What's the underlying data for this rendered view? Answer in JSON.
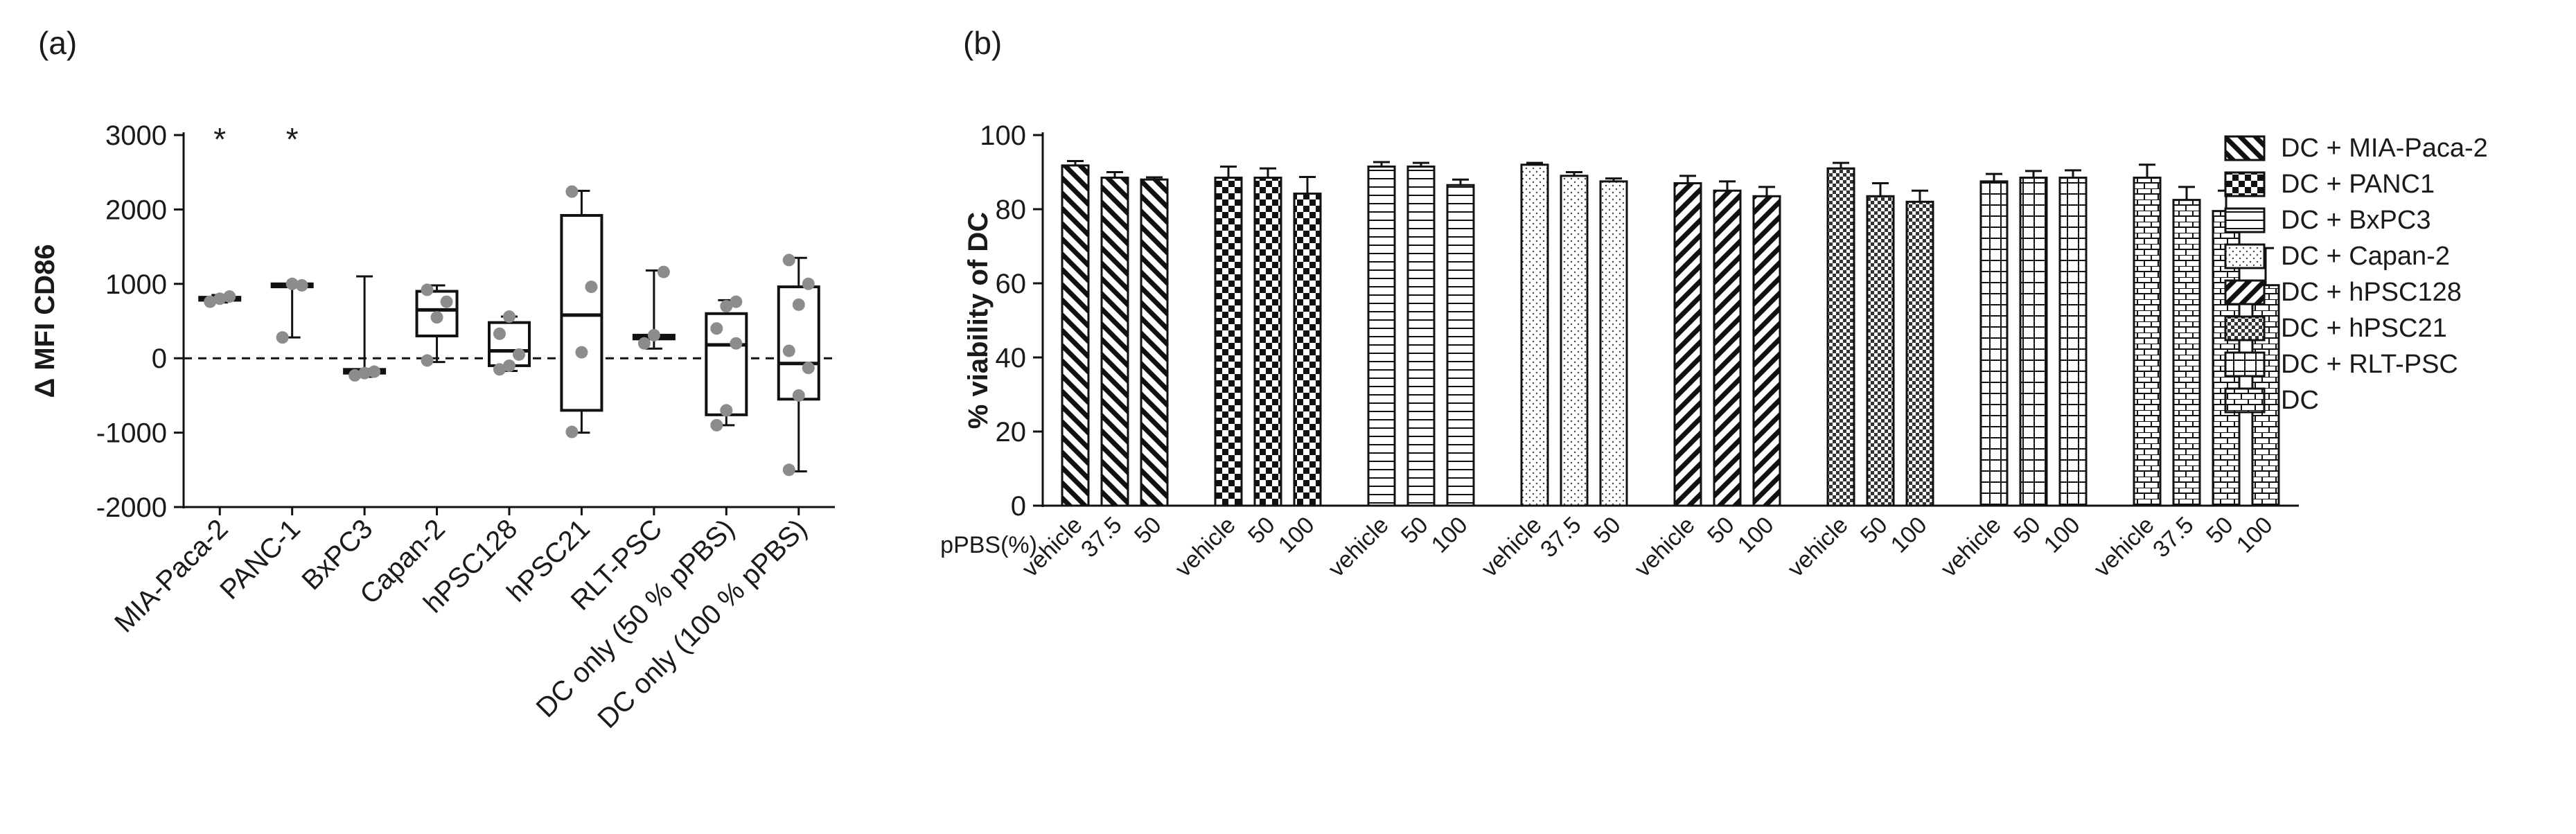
{
  "panel_a_label": "(a)",
  "panel_b_label": "(b)",
  "chart_data": [
    {
      "type": "box",
      "panel": "(a)",
      "ylabel": "Δ MFI CD86",
      "ylim": [
        -2000,
        3000
      ],
      "yticks": [
        "3000",
        "2000",
        "1000",
        "0",
        "-1000",
        "-2000"
      ],
      "reference_line": 0,
      "categories": [
        "MIA-Paca-2",
        "PANC-1",
        "BxPC3",
        "Capan-2",
        "hPSC128",
        "hPSC21",
        "RLT-PSC",
        "DC only (50 % pPBS)",
        "DC only (100 % pPBS)"
      ],
      "significance": [
        "*",
        "*",
        "",
        "",
        "",
        "",
        "",
        "",
        ""
      ],
      "boxes": [
        {
          "min": 750,
          "q1": 780,
          "median": 800,
          "q3": 820,
          "max": 850,
          "points": [
            760,
            800,
            830
          ]
        },
        {
          "min": 280,
          "q1": 960,
          "median": 980,
          "q3": 1000,
          "max": 1000,
          "points": [
            280,
            1000,
            980
          ]
        },
        {
          "min": -250,
          "q1": -200,
          "median": -180,
          "q3": -150,
          "max": 1100,
          "points": [
            -230,
            -200,
            -180
          ]
        },
        {
          "min": -50,
          "q1": 300,
          "median": 650,
          "q3": 900,
          "max": 980,
          "points": [
            -30,
            550,
            760,
            920
          ]
        },
        {
          "min": -170,
          "q1": -100,
          "median": 100,
          "q3": 480,
          "max": 560,
          "points": [
            -150,
            -100,
            50,
            330,
            560
          ]
        },
        {
          "min": -1000,
          "q1": -700,
          "median": 580,
          "q3": 1920,
          "max": 2250,
          "points": [
            -990,
            80,
            960,
            2240
          ]
        },
        {
          "min": 130,
          "q1": 260,
          "median": 300,
          "q3": 310,
          "max": 1180,
          "points": [
            200,
            310,
            1160
          ]
        },
        {
          "min": -900,
          "q1": -760,
          "median": 180,
          "q3": 600,
          "max": 780,
          "points": [
            -900,
            -700,
            200,
            400,
            700,
            760
          ]
        },
        {
          "min": -1520,
          "q1": -550,
          "median": -70,
          "q3": 960,
          "max": 1350,
          "points": [
            -1500,
            -500,
            -130,
            100,
            720,
            1000,
            1320
          ]
        }
      ]
    },
    {
      "type": "bar",
      "panel": "(b)",
      "ylabel": "% viability of DC",
      "ylim": [
        0,
        100
      ],
      "yticks": [
        "100",
        "80",
        "60",
        "40",
        "20",
        "0"
      ],
      "x_axis_title": "pPBS(%)",
      "legend_position": "right",
      "groups": [
        {
          "name": "DC + MIA-Paca-2",
          "pattern": "diag-left",
          "labels": [
            "vehicle",
            "37.5",
            "50"
          ],
          "values": [
            91.8,
            88.5,
            88.0
          ],
          "errors": [
            1.2,
            1.5,
            0.6
          ]
        },
        {
          "name": "DC + PANC1",
          "pattern": "checker",
          "labels": [
            "vehicle",
            "50",
            "100"
          ],
          "values": [
            88.5,
            88.5,
            84.2
          ],
          "errors": [
            3.0,
            2.5,
            4.5
          ]
        },
        {
          "name": "DC + BxPC3",
          "pattern": "hlines",
          "labels": [
            "vehicle",
            "50",
            "100"
          ],
          "values": [
            91.5,
            91.5,
            86.5
          ],
          "errors": [
            1.2,
            1.0,
            1.5
          ]
        },
        {
          "name": "DC + Capan-2",
          "pattern": "dots",
          "labels": [
            "vehicle",
            "37.5",
            "50"
          ],
          "values": [
            92.0,
            89.0,
            87.5
          ],
          "errors": [
            0.5,
            1.0,
            0.8
          ]
        },
        {
          "name": "DC + hPSC128",
          "pattern": "diag-right",
          "labels": [
            "vehicle",
            "50",
            "100"
          ],
          "values": [
            87.0,
            85.0,
            83.5
          ],
          "errors": [
            2.0,
            2.5,
            2.5
          ]
        },
        {
          "name": "DC + hPSC21",
          "pattern": "fine-checker",
          "labels": [
            "vehicle",
            "50",
            "100"
          ],
          "values": [
            91.0,
            83.5,
            82.0
          ],
          "errors": [
            1.5,
            3.5,
            3.0
          ]
        },
        {
          "name": "DC + RLT-PSC",
          "pattern": "grid",
          "labels": [
            "vehicle",
            "50",
            "100"
          ],
          "values": [
            87.5,
            88.5,
            88.5
          ],
          "errors": [
            2.0,
            1.8,
            2.0
          ]
        },
        {
          "name": "DC",
          "pattern": "brick",
          "labels": [
            "vehicle",
            "37.5",
            "50",
            "100"
          ],
          "values": [
            88.5,
            82.5,
            79.5,
            59.5
          ],
          "errors": [
            3.5,
            3.5,
            5.5,
            10.0
          ]
        }
      ]
    }
  ]
}
